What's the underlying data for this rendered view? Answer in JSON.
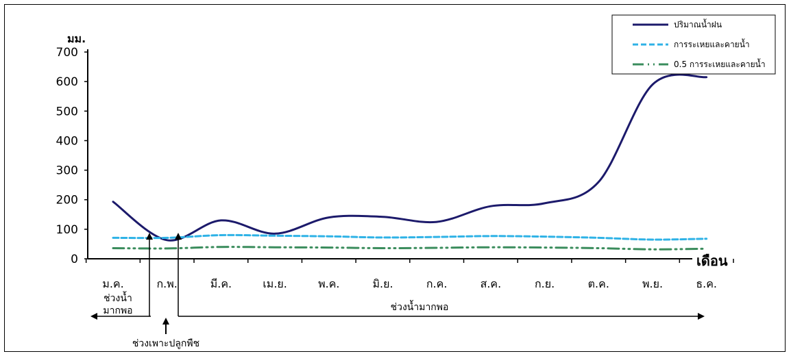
{
  "chart_data": {
    "type": "line",
    "categories": [
      "ม.ค.",
      "ก.พ.",
      "มี.ค.",
      "เม.ย.",
      "พ.ค.",
      "มิ.ย.",
      "ก.ค.",
      "ส.ค.",
      "ก.ย.",
      "ต.ค.",
      "พ.ย.",
      "ธ.ค."
    ],
    "series": [
      {
        "name": "ปริมาณน้ำฝน",
        "color": "#1c1a6b",
        "style": "solid",
        "values": [
          193,
          63,
          130,
          85,
          140,
          142,
          125,
          178,
          188,
          260,
          590,
          615
        ]
      },
      {
        "name": "การระเหยและคายน้ำ",
        "color": "#2eb2e6",
        "style": "dashed",
        "values": [
          71,
          71,
          80,
          78,
          76,
          72,
          74,
          77,
          75,
          71,
          65,
          68
        ]
      },
      {
        "name": "0.5 การระเหยและคายน้ำ",
        "color": "#3a8c5c",
        "style": "dash-dot",
        "values": [
          36,
          35,
          40,
          39,
          38,
          36,
          37,
          39,
          38,
          36,
          32,
          34
        ]
      }
    ],
    "ylabel": "มม.",
    "xlabel": "เดือน",
    "ylim": [
      0,
      700
    ],
    "yticks": [
      0,
      100,
      200,
      300,
      400,
      500,
      600,
      700
    ],
    "grid": false,
    "legend_position": "top-right",
    "annotations": {
      "wet_short": "ช่วงน้ำ\nมากพอ",
      "wet_long": "ช่วงน้ำมากพอ",
      "planting": "ช่วงเพาะปลูกพืช"
    }
  }
}
